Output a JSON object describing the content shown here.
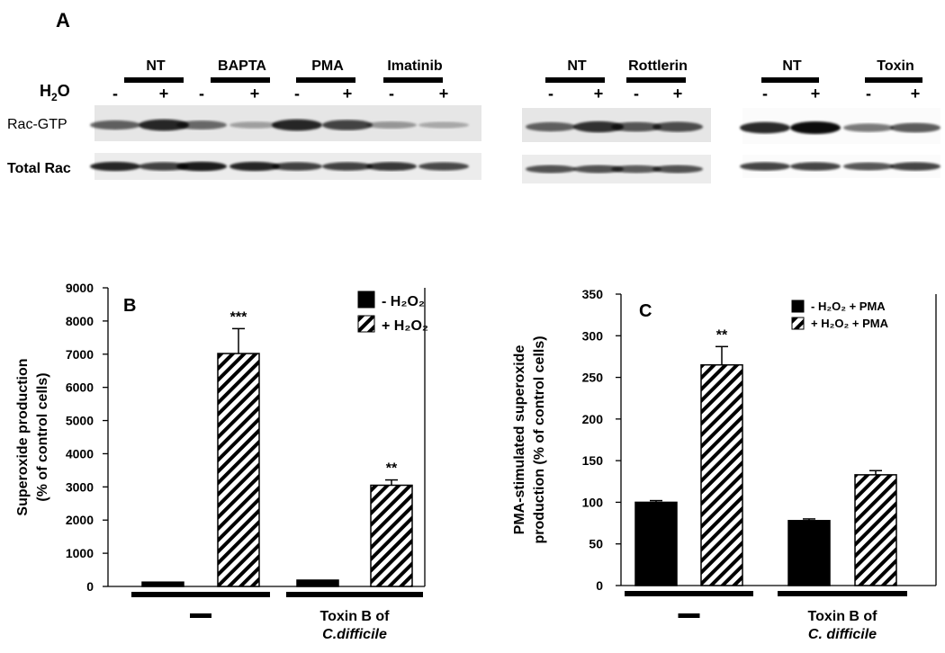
{
  "panel_a": {
    "label": "A",
    "treatment_label": "H",
    "treatment_sub": "2",
    "treatment_tail": "O",
    "row_labels": [
      "Rac-GTP",
      "Total Rac"
    ],
    "signs": [
      "-",
      "+"
    ],
    "blots": [
      {
        "groups": [
          "NT",
          "BAPTA",
          "PMA",
          "Imatinib"
        ],
        "gtp": [
          0.55,
          0.85,
          0.5,
          0.2,
          0.85,
          0.7,
          0.25,
          0.15
        ],
        "total": [
          0.85,
          0.7,
          0.9,
          0.85,
          0.7,
          0.7,
          0.75,
          0.65
        ]
      },
      {
        "groups": [
          "NT",
          "Rottlerin"
        ],
        "gtp": [
          0.55,
          0.8,
          0.6,
          0.65
        ],
        "total": [
          0.6,
          0.6,
          0.55,
          0.6
        ]
      },
      {
        "groups": [
          "NT",
          "Toxin"
        ],
        "gtp": [
          0.85,
          1.0,
          0.45,
          0.6
        ],
        "total": [
          0.7,
          0.7,
          0.6,
          0.7
        ]
      }
    ]
  },
  "chart_data": [
    {
      "type": "bar",
      "panel": "B",
      "ylabel_line1": "Superoxide production",
      "ylabel_line2": "(% of control cells)",
      "ylim": [
        0,
        9000
      ],
      "yticks": [
        0,
        1000,
        2000,
        3000,
        4000,
        5000,
        6000,
        7000,
        8000,
        9000
      ],
      "groups": [
        {
          "label_lines": [
            "—"
          ],
          "italic_line": ""
        },
        {
          "label_lines": [
            "Toxin B of"
          ],
          "italic_line": "C.difficile"
        }
      ],
      "series": [
        {
          "name": "- H₂O₂",
          "values": [
            130,
            190
          ],
          "errors": [
            0,
            0
          ],
          "sig": [
            "",
            ""
          ]
        },
        {
          "name": "+ H₂O₂",
          "values": [
            7020,
            3050
          ],
          "errors": [
            750,
            160
          ],
          "sig": [
            "***",
            "**"
          ]
        }
      ],
      "legend": "top-right"
    },
    {
      "type": "bar",
      "panel": "C",
      "ylabel_line1": "PMA-stimulated superoxide",
      "ylabel_line2": "production (% of control cells)",
      "ylim": [
        0,
        350
      ],
      "yticks": [
        0,
        50,
        100,
        150,
        200,
        250,
        300,
        350
      ],
      "groups": [
        {
          "label_lines": [
            "—"
          ],
          "italic_line": ""
        },
        {
          "label_lines": [
            "Toxin B of"
          ],
          "italic_line": "C. difficile"
        }
      ],
      "series": [
        {
          "name": "- H₂O₂ + PMA",
          "values": [
            100,
            78
          ],
          "errors": [
            2,
            2
          ],
          "sig": [
            "",
            ""
          ]
        },
        {
          "name": "+ H₂O₂ + PMA",
          "values": [
            265,
            133
          ],
          "errors": [
            22,
            5
          ],
          "sig": [
            "**",
            ""
          ]
        }
      ],
      "legend": "top-right"
    }
  ]
}
